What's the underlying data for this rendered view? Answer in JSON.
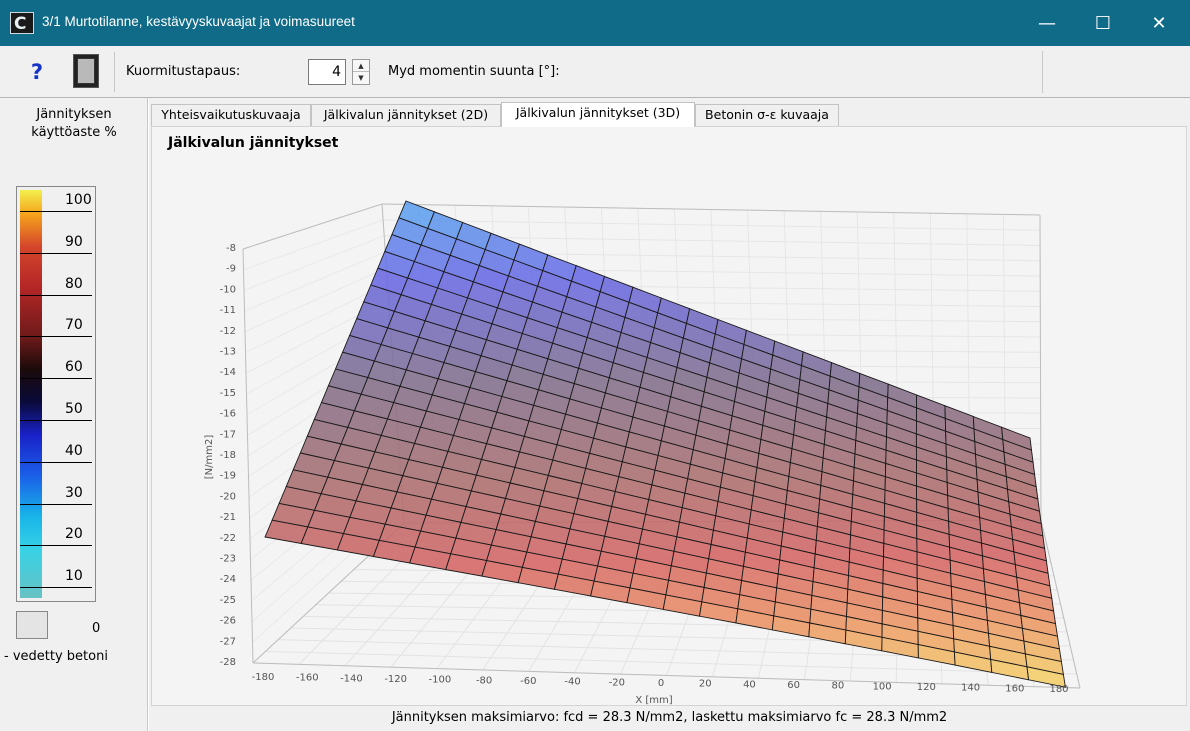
{
  "window": {
    "icon_letter": "C",
    "title": "3/1  Murtotilanne, kestävyyskuvaajat ja voimasuureet",
    "controls": {
      "minimize": "—",
      "maximize": "☐",
      "close": "✕"
    }
  },
  "toolbar": {
    "help_label": "?",
    "load_case_label": "Kuormitustapaus:",
    "load_case_value": "4",
    "moment_label": "Myd momentin suunta [°]:"
  },
  "legend": {
    "title": "Jännityksen käyttöaste %",
    "ticks": [
      "100",
      "90",
      "80",
      "70",
      "60",
      "50",
      "40",
      "30",
      "20",
      "10"
    ],
    "zero_value": "0",
    "caption": "- vedetty betoni"
  },
  "tabs": [
    {
      "label": "Yhteisvaikutuskuvaaja"
    },
    {
      "label": "Jälkivalun jännitykset (2D)"
    },
    {
      "label": "Jälkivalun jännitykset (3D)"
    },
    {
      "label": "Betonin σ-ε kuvaaja"
    }
  ],
  "footer": {
    "text": "Jännityksen maksimiarvo: fcd = 28.3 N/mm2, laskettu maksimiarvo fc = 28.3 N/mm2"
  },
  "chart_data": {
    "type": "surface3d",
    "title": "Jälkivalun jännitykset",
    "zlabel": "[N/mm2]",
    "xlabel": "X [mm]",
    "zlim": [
      -28,
      -8
    ],
    "xlim": [
      -180,
      180
    ],
    "z_ticks": [
      "-8",
      "-9",
      "-10",
      "-11",
      "-12",
      "-13",
      "-14",
      "-15",
      "-16",
      "-17",
      "-18",
      "-19",
      "-20",
      "-21",
      "-22",
      "-23",
      "-24",
      "-25",
      "-26",
      "-27",
      "-28"
    ],
    "x_ticks": [
      "-180",
      "-160",
      "-140",
      "-120",
      "-100",
      "-80",
      "-60",
      "-40",
      "-20",
      "0",
      "20",
      "40",
      "60",
      "80",
      "100",
      "120",
      "140",
      "160",
      "180"
    ],
    "corner_values": {
      "back_left": -8,
      "back_right": -17,
      "front_left": -21,
      "front_right": -28
    },
    "colors": {
      "low": "#5aa8ee",
      "mid": "#7a6a78",
      "high_red": "#d95a5a",
      "max": "#f4d060"
    }
  }
}
